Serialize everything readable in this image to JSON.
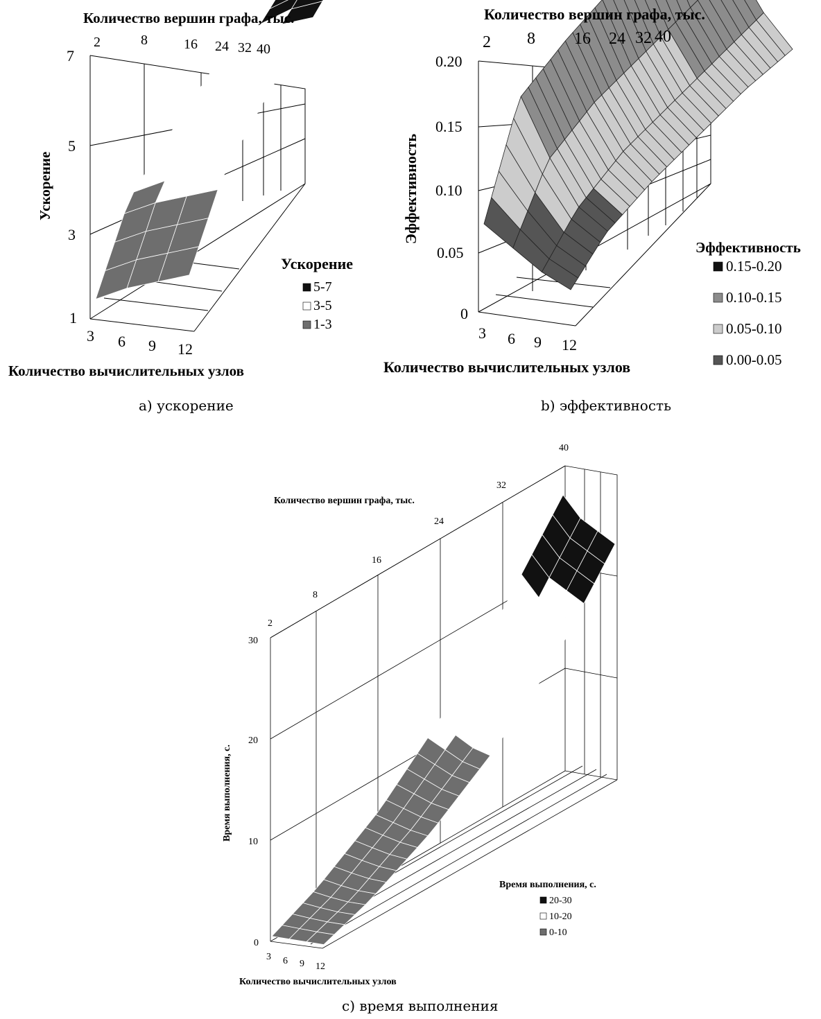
{
  "chart_data": [
    {
      "type": "surface3d",
      "caption": "a) ускорение",
      "xlabel": "Количество вершин графа, тыс.",
      "ylabel": "Ускорение",
      "zlabel": "Количество вычислительных узлов",
      "x_ticks": [
        "2",
        "8",
        "16",
        "24",
        "32",
        "40"
      ],
      "y_ticks": [
        "7",
        "5",
        "3",
        "1"
      ],
      "z_ticks": [
        "3",
        "6",
        "9",
        "12"
      ],
      "ylim": [
        1,
        7
      ],
      "legend_title": "Ускорение",
      "legend": [
        {
          "label": "5-7",
          "color": "#111111"
        },
        {
          "label": "3-5",
          "color": "#ffffff"
        },
        {
          "label": "1-3",
          "color": "#6e6e6e"
        }
      ],
      "x": [
        2,
        8,
        16,
        24,
        32,
        40
      ],
      "series": [
        {
          "name": "3",
          "values": [
            1.3,
            2.9,
            3.6,
            4.2,
            4.9,
            5.3
          ]
        },
        {
          "name": "6",
          "values": [
            1.5,
            3.1,
            3.9,
            4.6,
            5.3,
            5.8
          ]
        },
        {
          "name": "9",
          "values": [
            1.6,
            3.2,
            4.1,
            4.9,
            5.6,
            6.1
          ]
        },
        {
          "name": "12",
          "values": [
            1.7,
            3.3,
            4.2,
            5.0,
            5.8,
            6.3
          ]
        }
      ]
    },
    {
      "type": "surface3d",
      "caption": "b) эффективность",
      "xlabel": "Количество вершин графа, тыс.",
      "ylabel": "Эффективность",
      "zlabel": "Количество вычислительных узлов",
      "x_ticks": [
        "2",
        "8",
        "16",
        "24",
        "32",
        "40"
      ],
      "y_ticks": [
        "0.20",
        "0.15",
        "0.10",
        "0.05",
        "0"
      ],
      "z_ticks": [
        "3",
        "6",
        "9",
        "12"
      ],
      "ylim": [
        0,
        0.2
      ],
      "legend_title": "Эффективность",
      "legend": [
        {
          "label": "0.15-0.20",
          "color": "#111111"
        },
        {
          "label": "0.10-0.15",
          "color": "#8c8c8c"
        },
        {
          "label": "0.05-0.10",
          "color": "#cccccc"
        },
        {
          "label": "0.00-0.05",
          "color": "#555555"
        }
      ],
      "x": [
        2,
        8,
        16,
        24,
        32,
        40
      ],
      "series": [
        {
          "name": "3",
          "values": [
            0.04,
            0.12,
            0.14,
            0.155,
            0.165,
            0.17
          ]
        },
        {
          "name": "6",
          "values": [
            0.03,
            0.08,
            0.1,
            0.11,
            0.12,
            0.13
          ]
        },
        {
          "name": "9",
          "values": [
            0.02,
            0.05,
            0.07,
            0.08,
            0.09,
            0.1
          ]
        },
        {
          "name": "12",
          "values": [
            0.015,
            0.04,
            0.055,
            0.065,
            0.075,
            0.08
          ]
        }
      ]
    },
    {
      "type": "surface3d",
      "caption": "c) время выполнения",
      "xlabel": "Количество вершин графа, тыс.",
      "ylabel": "Время выполнения, с.",
      "zlabel": "Количество вычислительных узлов",
      "x_ticks": [
        "2",
        "8",
        "16",
        "24",
        "32",
        "40"
      ],
      "y_ticks": [
        "30",
        "20",
        "10",
        "0"
      ],
      "z_ticks": [
        "3",
        "6",
        "9",
        "12"
      ],
      "ylim": [
        0,
        30
      ],
      "legend_title": "Время выполнения, с.",
      "legend": [
        {
          "label": "20-30",
          "color": "#111111"
        },
        {
          "label": "10-20",
          "color": "#ffffff"
        },
        {
          "label": "0-10",
          "color": "#6e6e6e"
        }
      ],
      "x": [
        2,
        8,
        16,
        24,
        32,
        40
      ],
      "series": [
        {
          "name": "3",
          "values": [
            0.3,
            2.5,
            6.5,
            12,
            19,
            27
          ]
        },
        {
          "name": "6",
          "values": [
            0.3,
            2.2,
            6,
            11,
            17,
            25
          ]
        },
        {
          "name": "9",
          "values": [
            0.3,
            2,
            5.5,
            10,
            16,
            24
          ]
        },
        {
          "name": "12",
          "values": [
            0.3,
            2,
            5.2,
            9.5,
            15,
            23
          ]
        }
      ]
    }
  ]
}
